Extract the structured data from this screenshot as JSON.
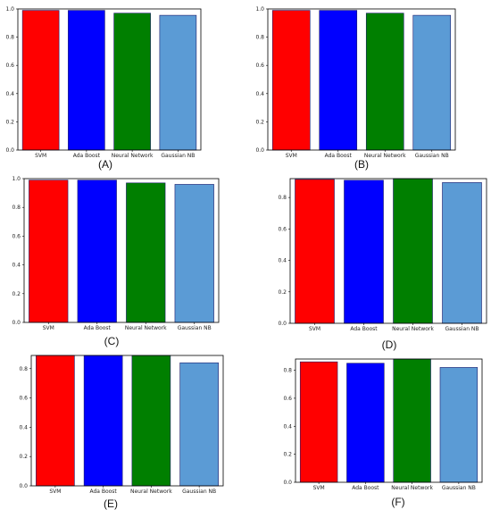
{
  "colors": {
    "bar_edge": "#1a1a6a"
  },
  "chart_data": [
    {
      "type": "bar",
      "panel_label": "(A)",
      "categories": [
        "SVM",
        "Ada Boost",
        "Neural Network",
        "Gaussian NB"
      ],
      "values": [
        0.99,
        0.99,
        0.97,
        0.955
      ],
      "bar_colors": [
        "#ff0000",
        "#0000ff",
        "#007f00",
        "#5b9bd5"
      ],
      "ylim": [
        0,
        1.0
      ],
      "yticks": [
        0.0,
        0.2,
        0.4,
        0.6,
        0.8,
        1.0
      ],
      "ytick_labels": [
        "0.0",
        "0.2",
        "0.4",
        "0.6",
        "0.8",
        "1.0"
      ],
      "grid": false
    },
    {
      "type": "bar",
      "panel_label": "(B)",
      "categories": [
        "SVM",
        "Ada Boost",
        "Neural Network",
        "Gaussian NB"
      ],
      "values": [
        0.99,
        0.99,
        0.97,
        0.955
      ],
      "bar_colors": [
        "#ff0000",
        "#0000ff",
        "#007f00",
        "#5b9bd5"
      ],
      "ylim": [
        0,
        1.0
      ],
      "yticks": [
        0.0,
        0.2,
        0.4,
        0.6,
        0.8,
        1.0
      ],
      "ytick_labels": [
        "0.0",
        "0.2",
        "0.4",
        "0.6",
        "0.8",
        "1.0"
      ],
      "grid": false
    },
    {
      "type": "bar",
      "panel_label": "(C)",
      "categories": [
        "SVM",
        "Ada Boost",
        "Neural Network",
        "Gaussian NB"
      ],
      "values": [
        0.99,
        0.99,
        0.97,
        0.96
      ],
      "bar_colors": [
        "#ff0000",
        "#0000ff",
        "#007f00",
        "#5b9bd5"
      ],
      "ylim": [
        0,
        1.0
      ],
      "yticks": [
        0.0,
        0.2,
        0.4,
        0.6,
        0.8,
        1.0
      ],
      "ytick_labels": [
        "0.0",
        "0.2",
        "0.4",
        "0.6",
        "0.8",
        "1.0"
      ],
      "grid": false
    },
    {
      "type": "bar",
      "panel_label": "(D)",
      "categories": [
        "SVM",
        "Ada Boost",
        "Neural Network",
        "Gaussian NB"
      ],
      "values": [
        0.915,
        0.91,
        0.92,
        0.895
      ],
      "bar_colors": [
        "#ff0000",
        "#0000ff",
        "#007f00",
        "#5b9bd5"
      ],
      "ylim": [
        0,
        0.92
      ],
      "yticks": [
        0.0,
        0.2,
        0.4,
        0.6,
        0.8
      ],
      "ytick_labels": [
        "0.0",
        "0.2",
        "0.4",
        "0.6",
        "0.8"
      ],
      "grid": false
    },
    {
      "type": "bar",
      "panel_label": "(E)",
      "categories": [
        "SVM",
        "Ada Boost",
        "Neural Network",
        "Gaussian NB"
      ],
      "values": [
        0.89,
        0.89,
        0.89,
        0.84
      ],
      "bar_colors": [
        "#ff0000",
        "#0000ff",
        "#007f00",
        "#5b9bd5"
      ],
      "ylim": [
        0,
        0.89
      ],
      "yticks": [
        0.0,
        0.2,
        0.4,
        0.6,
        0.8
      ],
      "ytick_labels": [
        "0.0",
        "0.2",
        "0.4",
        "0.6",
        "0.8"
      ],
      "grid": false
    },
    {
      "type": "bar",
      "panel_label": "(F)",
      "categories": [
        "SVM",
        "Ada Boost",
        "Neural Network",
        "Gaussian NB"
      ],
      "values": [
        0.86,
        0.85,
        0.88,
        0.82
      ],
      "bar_colors": [
        "#ff0000",
        "#0000ff",
        "#007f00",
        "#5b9bd5"
      ],
      "ylim": [
        0,
        0.88
      ],
      "yticks": [
        0.0,
        0.2,
        0.4,
        0.6,
        0.8
      ],
      "ytick_labels": [
        "0.0",
        "0.2",
        "0.4",
        "0.6",
        "0.8"
      ],
      "grid": false
    }
  ]
}
